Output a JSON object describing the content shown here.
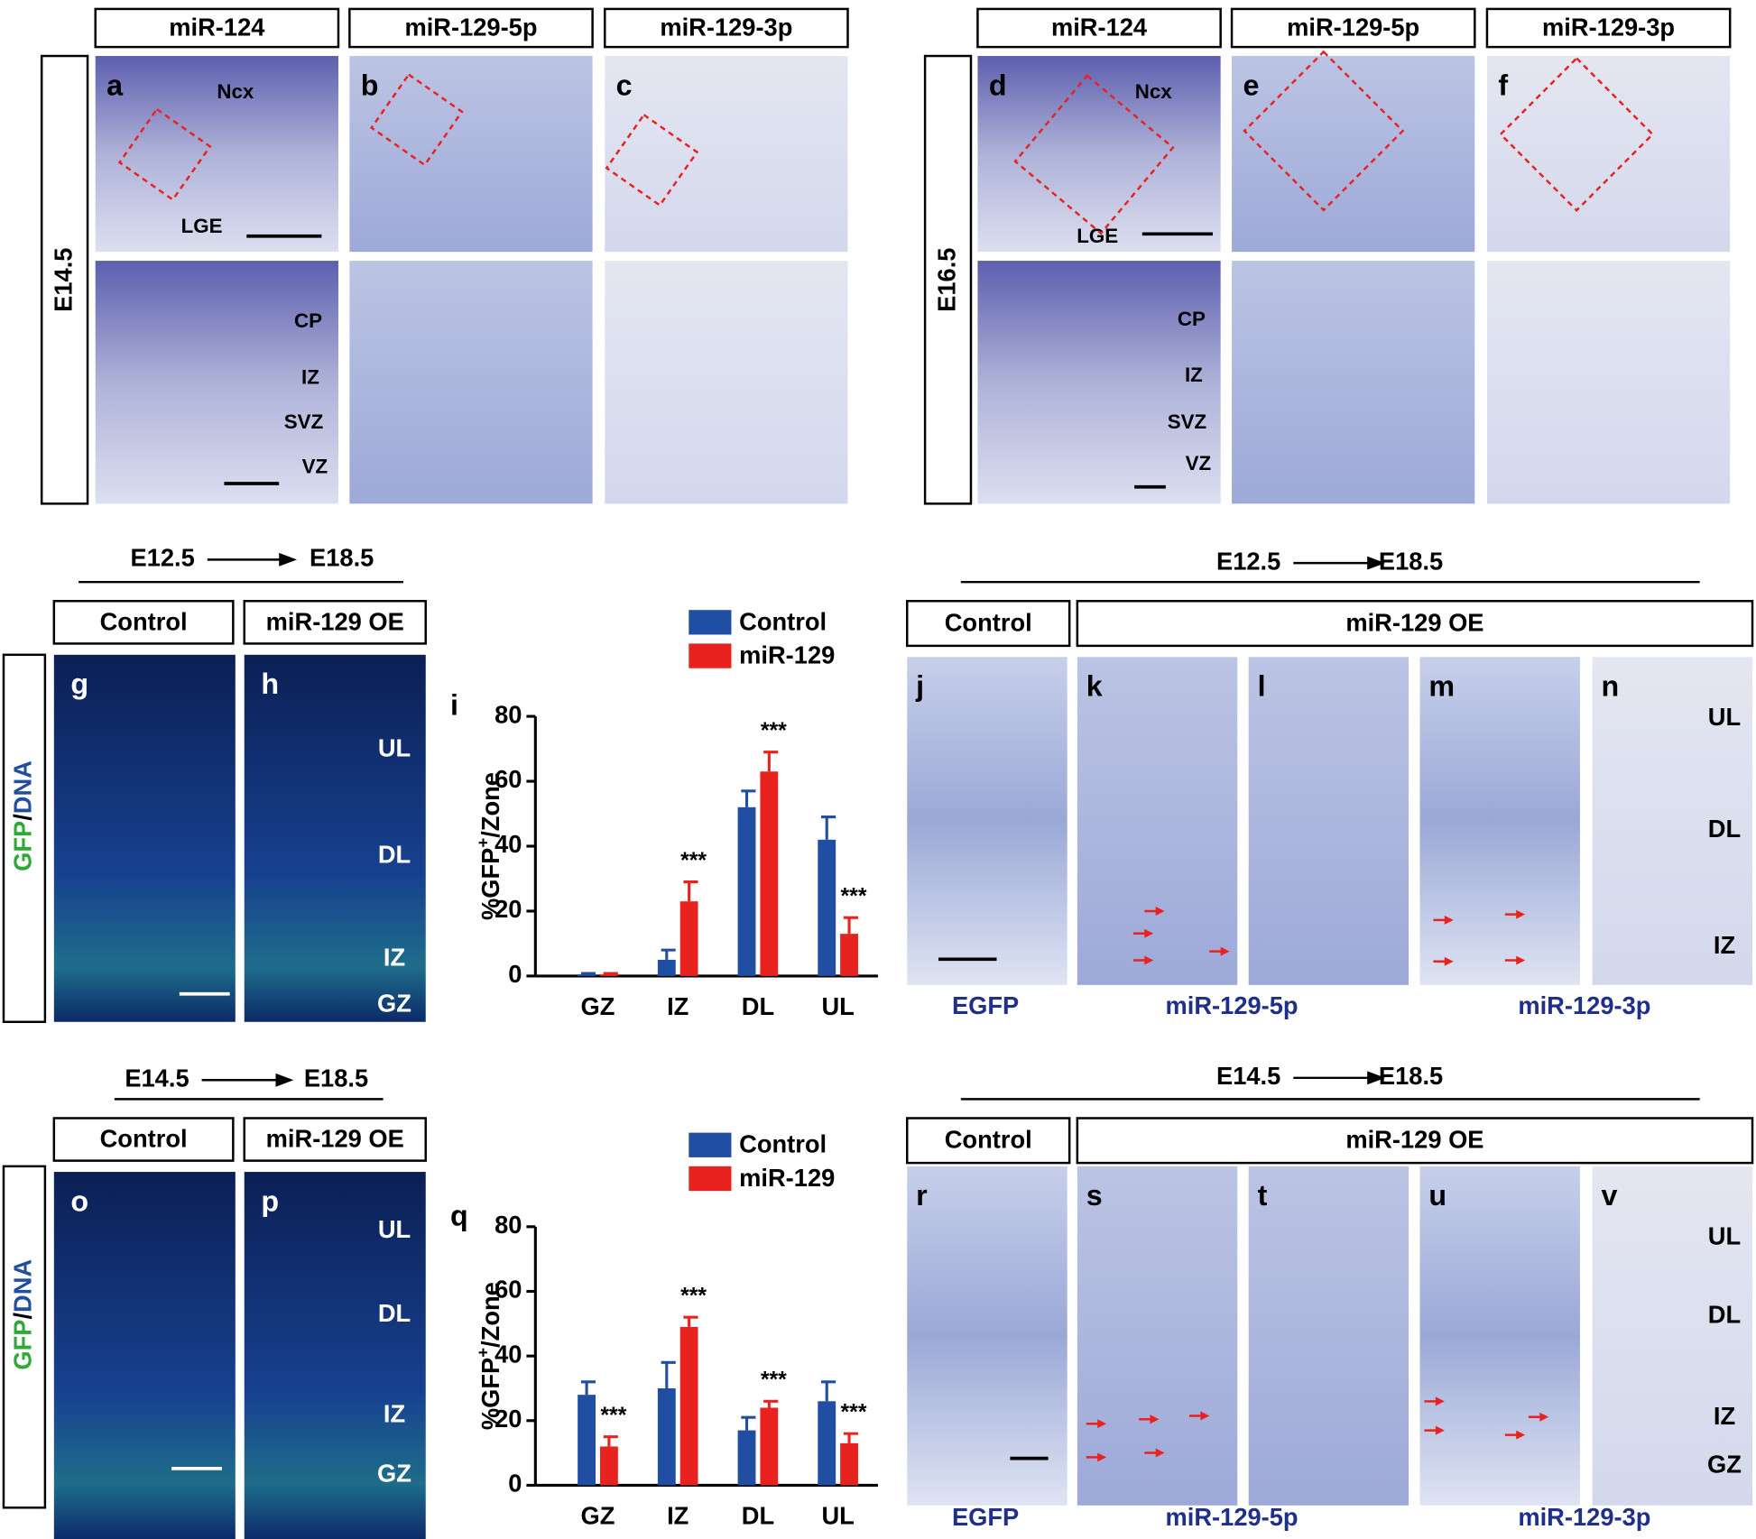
{
  "panels_top": {
    "headers": [
      "miR-124",
      "miR-129-5p",
      "miR-129-3p"
    ],
    "stages": [
      "E14.5",
      "E16.5"
    ],
    "letters": [
      "a",
      "b",
      "c",
      "d",
      "e",
      "f"
    ],
    "regions": [
      "Ncx",
      "LGE",
      "CP",
      "IZ",
      "SVZ",
      "VZ"
    ]
  },
  "panels_middle": {
    "timeline": [
      "E12.5",
      "E18.5"
    ],
    "control": "Control",
    "overexpression": "miR-129 OE",
    "stain": [
      "GFP",
      "/",
      "DNA"
    ],
    "letters": [
      "g",
      "h",
      "j",
      "k",
      "l",
      "m",
      "n"
    ],
    "zones": [
      "UL",
      "DL",
      "IZ",
      "GZ"
    ],
    "probes": [
      "EGFP",
      "miR-129-5p",
      "miR-129-3p"
    ]
  },
  "panels_bottom": {
    "timeline": [
      "E14.5",
      "E18.5"
    ],
    "letters": [
      "o",
      "p",
      "r",
      "s",
      "t",
      "u",
      "v"
    ]
  },
  "chart_data": [
    {
      "type": "bar",
      "panel_letter": "i",
      "y_label": [
        "%GFP",
        "+",
        "/Zone"
      ],
      "categories": [
        "GZ",
        "IZ",
        "DL",
        "UL"
      ],
      "series": [
        {
          "name": "Control",
          "color": "#1f4ea3",
          "values": [
            0.5,
            5,
            52,
            42
          ],
          "errors": [
            0.3,
            3,
            5,
            7
          ]
        },
        {
          "name": "miR-129",
          "color": "#e8231f",
          "values": [
            0.5,
            23,
            63,
            13
          ],
          "errors": [
            0.3,
            6,
            6,
            5
          ],
          "significance": [
            null,
            "***",
            "***",
            "***"
          ]
        }
      ],
      "ylim": [
        0,
        80
      ],
      "yticks": [
        0,
        20,
        40,
        60,
        80
      ]
    },
    {
      "type": "bar",
      "panel_letter": "q",
      "y_label": [
        "%GFP",
        "+",
        "/Zone"
      ],
      "categories": [
        "GZ",
        "IZ",
        "DL",
        "UL"
      ],
      "series": [
        {
          "name": "Control",
          "color": "#1f4ea3",
          "values": [
            28,
            30,
            17,
            26
          ],
          "errors": [
            4,
            8,
            4,
            6
          ]
        },
        {
          "name": "miR-129",
          "color": "#e8231f",
          "values": [
            12,
            49,
            24,
            13
          ],
          "errors": [
            3,
            3,
            2,
            3
          ],
          "significance": [
            "***",
            "***",
            "***",
            "***"
          ]
        }
      ],
      "ylim": [
        0,
        80
      ],
      "yticks": [
        0,
        20,
        40,
        60,
        80
      ]
    }
  ]
}
